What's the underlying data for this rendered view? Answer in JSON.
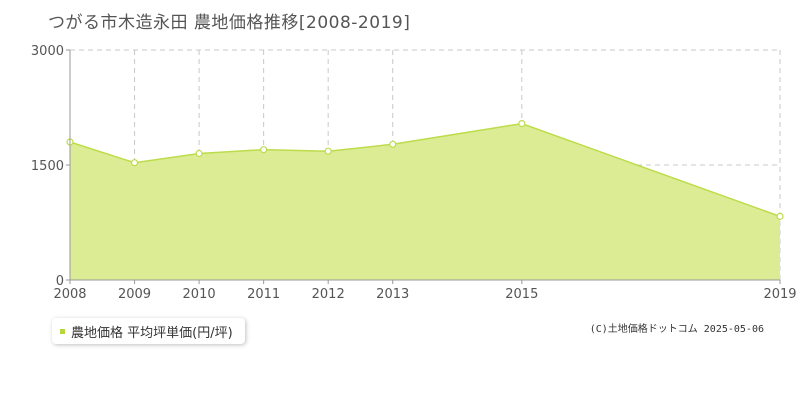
{
  "title": "つがる市木造永田 農地価格推移[2008-2019]",
  "credit": "(C)土地価格ドットコム 2025-05-06",
  "colors": {
    "fill": "#dbec95",
    "line": "#bcdc4a",
    "grid": "#c8c8c8",
    "axis": "#999999",
    "legend_marker": "#b5d63d"
  },
  "chart_data": {
    "type": "area",
    "x": [
      "2008",
      "2009",
      "2010",
      "2011",
      "2012",
      "2013",
      "2015",
      "2019"
    ],
    "series": [
      {
        "name": "農地価格 平均坪単価(円/坪)",
        "values": [
          1800,
          1530,
          1650,
          1700,
          1680,
          1770,
          2040,
          830
        ]
      }
    ],
    "y_ticks": [
      "0",
      "1500",
      "3000"
    ],
    "ylim": [
      0,
      3000
    ],
    "grid": true,
    "legend_position": "bottom-left"
  }
}
